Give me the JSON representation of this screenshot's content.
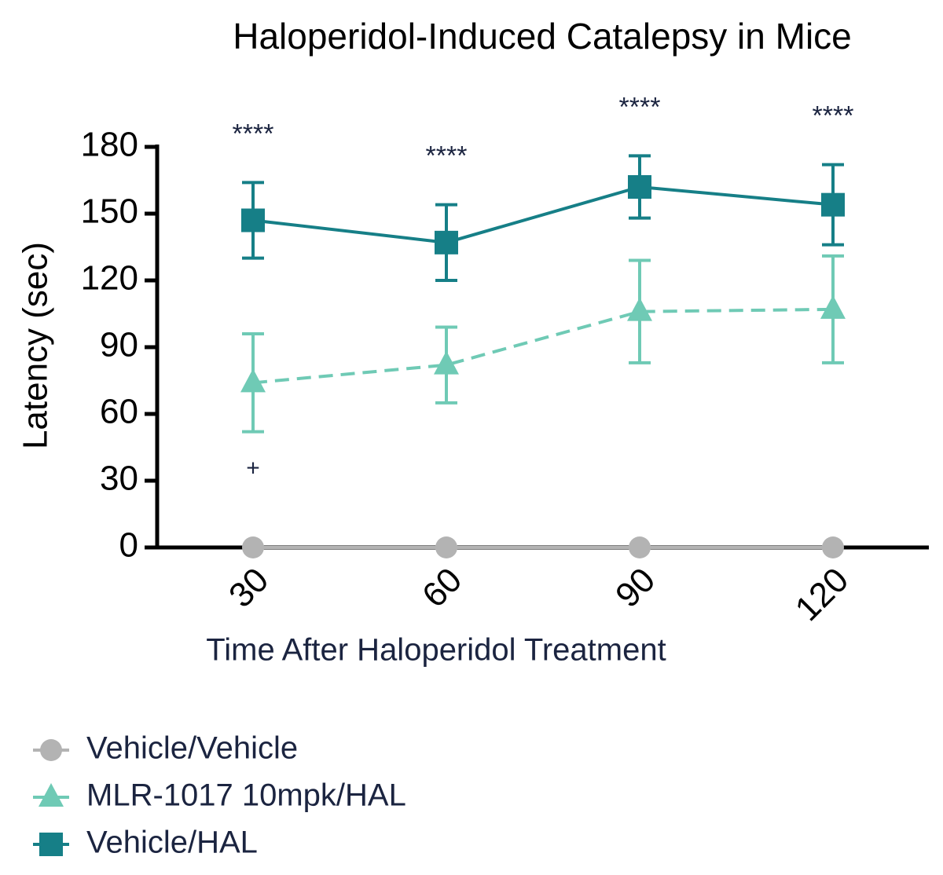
{
  "chart_data": {
    "type": "line",
    "title": "Haloperidol-Induced Catalepsy in Mice",
    "x_label": "Time After Haloperidol Treatment",
    "y_label": "Latency (sec)",
    "categories": [
      "30",
      "60",
      "90",
      "120"
    ],
    "ylim": [
      0,
      180
    ],
    "yticks": [
      0,
      30,
      60,
      90,
      120,
      150,
      180
    ],
    "series": [
      {
        "name": "Vehicle/Vehicle",
        "color": "#b3b3b3",
        "marker": "circle",
        "dashed": false,
        "values": [
          0,
          0,
          0,
          0
        ],
        "errors": [
          0,
          0,
          0,
          0
        ]
      },
      {
        "name": "MLR-1017 10mpk/HAL",
        "color": "#6fcab5",
        "marker": "triangle",
        "dashed": true,
        "values": [
          74,
          82,
          106,
          107
        ],
        "errors": [
          22,
          17,
          23,
          24
        ]
      },
      {
        "name": "Vehicle/HAL",
        "color": "#167f87",
        "marker": "square",
        "dashed": false,
        "values": [
          147,
          137,
          162,
          154
        ],
        "errors": [
          17,
          17,
          14,
          18
        ]
      }
    ],
    "annotations": [
      {
        "text": "****",
        "category": "30",
        "position": "above"
      },
      {
        "text": "****",
        "category": "60",
        "position": "above"
      },
      {
        "text": "****",
        "category": "90",
        "position": "above"
      },
      {
        "text": "****",
        "category": "120",
        "position": "above"
      },
      {
        "text": "+",
        "category": "30",
        "position": "below"
      }
    ]
  }
}
